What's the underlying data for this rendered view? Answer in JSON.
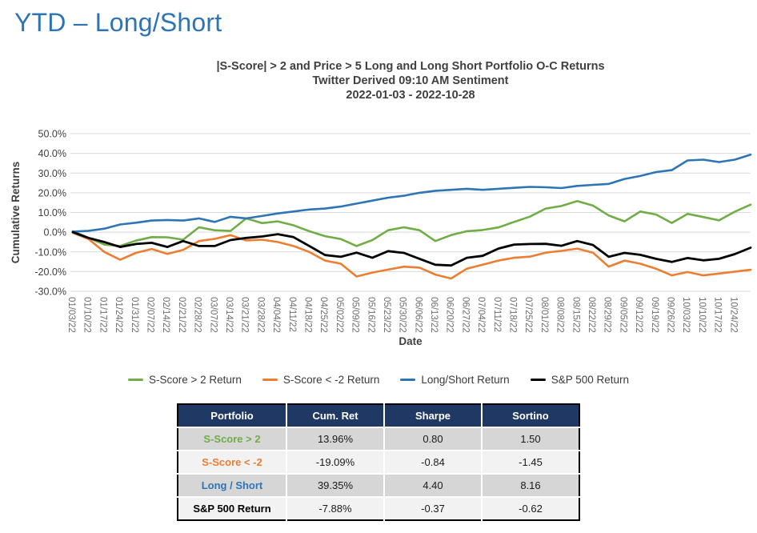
{
  "page": {
    "title": "YTD – Long/Short"
  },
  "chart_data": {
    "type": "line",
    "title_lines": [
      "|S-Score| > 2 and Price > 5 Long and Long Short Portfolio O-C Returns",
      "Twitter Derived 09:10 AM Sentiment",
      "2022-01-03 - 2022-10-28"
    ],
    "xlabel": "Date",
    "ylabel": "Cumulative Returns",
    "ylim": [
      -30,
      50
    ],
    "grid": true,
    "legend_position": "bottom",
    "y_tick_values": [
      50,
      40,
      30,
      20,
      10,
      0,
      -10,
      -20,
      -30
    ],
    "y_tick_labels": [
      "50.0%",
      "40.0%",
      "30.0%",
      "20.0%",
      "10.0%",
      "0.0%",
      "-10.0%",
      "-20.0%",
      "-30.0%"
    ],
    "x_tick_labels": [
      "01/03/22",
      "01/10/22",
      "01/17/22",
      "01/24/22",
      "01/31/22",
      "02/07/22",
      "02/14/22",
      "02/21/22",
      "02/28/22",
      "03/07/22",
      "03/14/22",
      "03/21/22",
      "03/28/22",
      "04/04/22",
      "04/11/22",
      "04/18/22",
      "04/25/22",
      "05/02/22",
      "05/09/22",
      "05/16/22",
      "05/23/22",
      "05/30/22",
      "06/06/22",
      "06/13/22",
      "06/20/22",
      "06/27/22",
      "07/04/22",
      "07/11/22",
      "07/18/22",
      "07/25/22",
      "08/01/22",
      "08/08/22",
      "08/15/22",
      "08/22/22",
      "08/29/22",
      "09/05/22",
      "09/12/22",
      "09/19/22",
      "09/26/22",
      "10/03/22",
      "10/10/22",
      "10/17/22",
      "10/24/22"
    ],
    "series": [
      {
        "name": "S-Score > 2 Return",
        "color": "#70AD47",
        "values": [
          0.5,
          -2.9,
          -6.3,
          -7,
          -4.3,
          -2.5,
          -2.6,
          -3.8,
          2.5,
          1,
          0.6,
          7,
          4.6,
          5.5,
          3.5,
          0.5,
          -2,
          -3.5,
          -7,
          -4,
          1,
          2.5,
          1,
          -4.5,
          -1.5,
          0.5,
          1.1,
          2.4,
          5.2,
          7.9,
          12,
          13.3,
          15.8,
          13.5,
          8.5,
          5.5,
          10.5,
          9,
          4.7,
          9.3,
          7.7,
          6,
          10.4,
          13.96
        ]
      },
      {
        "name": "S-Score < -2 Return",
        "color": "#ED7D31",
        "values": [
          -0.3,
          -3.5,
          -10,
          -14,
          -10.5,
          -8.5,
          -11,
          -9,
          -4.5,
          -3.4,
          -1.5,
          -4.2,
          -3.8,
          -5,
          -7,
          -10,
          -14.4,
          -16,
          -22.5,
          -20.5,
          -19,
          -17.5,
          -18,
          -21.5,
          -23.5,
          -18.5,
          -16.5,
          -14.4,
          -13,
          -12.4,
          -10.4,
          -9.5,
          -8.3,
          -10.4,
          -17.5,
          -14.4,
          -16,
          -18.5,
          -21.9,
          -20.2,
          -21.9,
          -21,
          -20,
          -19.09
        ]
      },
      {
        "name": "Long/Short Return",
        "color": "#2E75B6",
        "values": [
          0.3,
          0.7,
          1.8,
          3.9,
          4.8,
          5.9,
          6.2,
          5.9,
          7,
          5.2,
          7.8,
          7,
          8.2,
          9.5,
          10.5,
          11.5,
          12,
          13,
          14.5,
          16,
          17.5,
          18.5,
          20,
          21,
          21.5,
          22,
          21.5,
          22,
          22.5,
          23,
          22.8,
          22.4,
          23.5,
          24,
          24.5,
          27,
          28.5,
          30.5,
          31.5,
          36.4,
          36.8,
          35.6,
          36.8,
          39.35
        ]
      },
      {
        "name": "S&P 500 Return",
        "color": "#000000",
        "values": [
          0,
          -2.9,
          -5,
          -7.5,
          -6,
          -5.4,
          -7.5,
          -4.5,
          -7,
          -7,
          -4,
          -2.9,
          -2.2,
          -1,
          -2.5,
          -7,
          -11.6,
          -12.5,
          -10.4,
          -13,
          -9.6,
          -10.5,
          -13.5,
          -16.5,
          -16.9,
          -13,
          -12,
          -8.3,
          -6.3,
          -6,
          -5.9,
          -6.9,
          -4.5,
          -6.5,
          -12.5,
          -10.5,
          -11.5,
          -13.5,
          -15.1,
          -13.1,
          -14.3,
          -13.5,
          -11.1,
          -7.88
        ]
      }
    ]
  },
  "table": {
    "headers": [
      "Portfolio",
      "Cum. Ret",
      "Sharpe",
      "Sortino"
    ],
    "rows": [
      {
        "portfolio": "S-Score > 2",
        "color": "#70AD47",
        "bg": "#D6D6D6",
        "cells": [
          "13.96%",
          "0.80",
          "1.50"
        ]
      },
      {
        "portfolio": "S-Score < -2",
        "color": "#ED7D31",
        "bg": "#F2F2F2",
        "cells": [
          "-19.09%",
          "-0.84",
          "-1.45"
        ]
      },
      {
        "portfolio": "Long / Short",
        "color": "#2E75B6",
        "bg": "#D6D6D6",
        "cells": [
          "39.35%",
          "4.40",
          "8.16"
        ]
      },
      {
        "portfolio": "S&P 500 Return",
        "color": "#000000",
        "bg": "#F2F2F2",
        "cells": [
          "-7.88%",
          "-0.37",
          "-0.62"
        ]
      }
    ]
  }
}
